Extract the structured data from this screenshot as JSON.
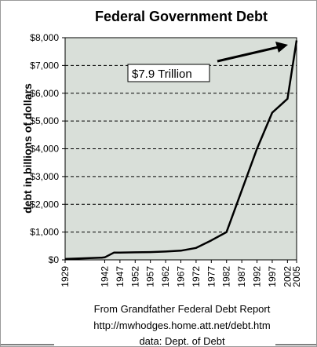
{
  "chart_data": {
    "type": "line",
    "title": "Federal Government Debt",
    "ylabel": "debt in billions of dollars",
    "xlabel": "",
    "x_ticks": [
      "1929",
      "1942",
      "1947",
      "1952",
      "1957",
      "1962",
      "1967",
      "1972",
      "1977",
      "1982",
      "1987",
      "1992",
      "1997",
      "2002",
      "2005"
    ],
    "y_ticks": [
      "$0",
      "$1,000",
      "$2,000",
      "$3,000",
      "$4,000",
      "$5,000",
      "$6,000",
      "$7,000",
      "$8,000"
    ],
    "ylim": [
      0,
      8000
    ],
    "grid": "horizontal dashed",
    "plot_background": "#d9dfd9",
    "line_color": "#000000",
    "series": [
      {
        "x": [
          1929,
          1941,
          1942,
          1945,
          1947,
          1952,
          1957,
          1962,
          1967,
          1972,
          1977,
          1982,
          1987,
          1992,
          1997,
          2000,
          2002,
          2005
        ],
        "y": [
          30,
          80,
          90,
          260,
          260,
          270,
          280,
          300,
          330,
          430,
          700,
          1000,
          2500,
          4000,
          5300,
          5600,
          5800,
          7900
        ]
      }
    ],
    "annotations": [
      {
        "text": "$7.9 Trillion",
        "arrow_to_x": 2005,
        "arrow_to_y": 7900
      }
    ],
    "footer": [
      "From Grandfather Federal Debt Report",
      "http://mwhodges.home.att.net/debt.htm",
      "data:  Dept. of Debt"
    ]
  }
}
